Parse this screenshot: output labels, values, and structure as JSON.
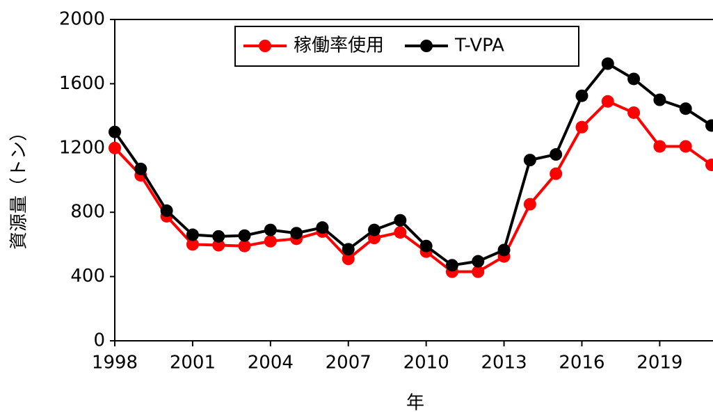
{
  "chart_data": {
    "type": "line",
    "x_label": "年",
    "y_label": "資源量（トン）",
    "x": [
      1998,
      1999,
      2000,
      2001,
      2002,
      2003,
      2004,
      2005,
      2006,
      2007,
      2008,
      2009,
      2010,
      2011,
      2012,
      2013,
      2014,
      2015,
      2016,
      2017,
      2018,
      2019,
      2020,
      2021
    ],
    "series": [
      {
        "name": "稼働率使用",
        "color": "#ff0000",
        "values": [
          1200,
          1030,
          775,
          600,
          595,
          590,
          620,
          635,
          680,
          510,
          640,
          675,
          555,
          430,
          430,
          525,
          850,
          1040,
          1330,
          1490,
          1420,
          1210,
          1210,
          1095
        ]
      },
      {
        "name": "T-VPA",
        "color": "#000000",
        "values": [
          1300,
          1070,
          810,
          660,
          650,
          655,
          690,
          670,
          705,
          570,
          690,
          750,
          590,
          470,
          495,
          565,
          1125,
          1160,
          1525,
          1725,
          1630,
          1500,
          1445,
          1340
        ]
      }
    ],
    "xlim": [
      1998,
      2021
    ],
    "xticks": [
      1998,
      2001,
      2004,
      2007,
      2010,
      2013,
      2016,
      2019
    ],
    "ylim": [
      0,
      2000
    ],
    "yticks": [
      0,
      400,
      800,
      1200,
      1600,
      2000
    ],
    "legend": "top"
  }
}
